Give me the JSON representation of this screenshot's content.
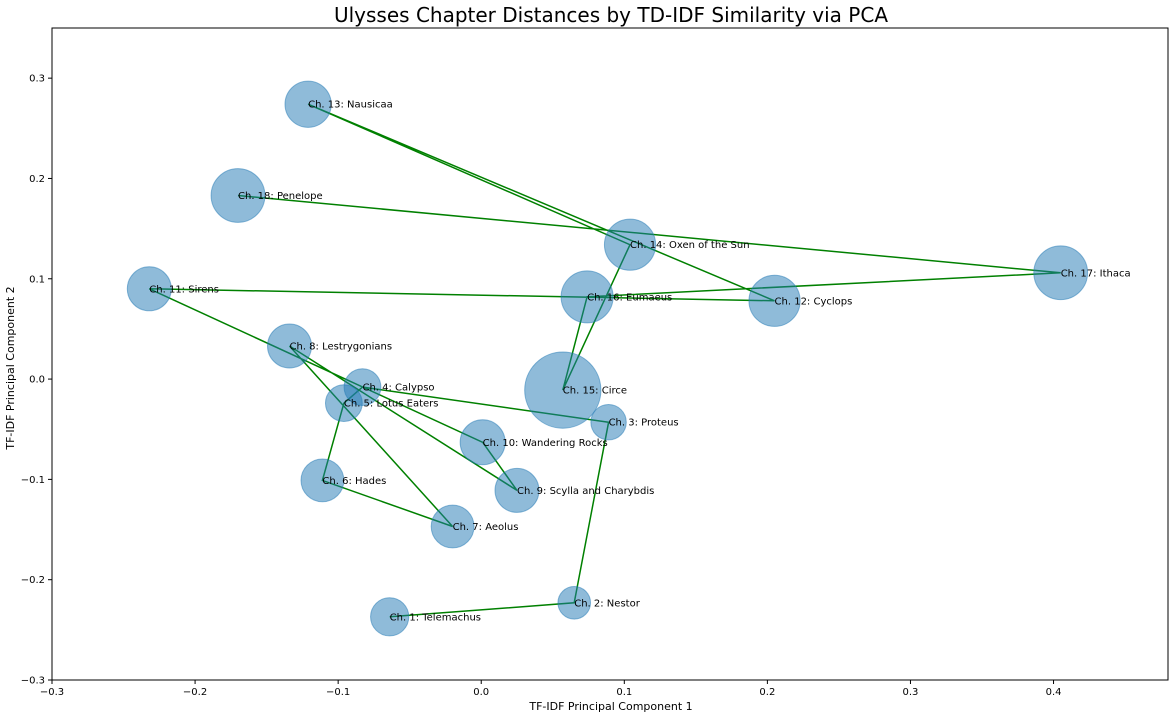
{
  "chart_data": {
    "type": "scatter",
    "title": "Ulysses Chapter Distances by TD-IDF Similarity via PCA",
    "xlabel": "TF-IDF Principal Component 1",
    "ylabel": "TF-IDF Principal Component 2",
    "xlim": [
      -0.3,
      0.48
    ],
    "ylim": [
      -0.3,
      0.35
    ],
    "xticks": [
      "−0.3",
      "−0.2",
      "−0.1",
      "0.0",
      "0.1",
      "0.2",
      "0.3",
      "0.4"
    ],
    "xtick_values": [
      -0.3,
      -0.2,
      -0.1,
      0.0,
      0.1,
      0.2,
      0.3,
      0.4
    ],
    "yticks": [
      "−0.3",
      "−0.2",
      "−0.1",
      "0.0",
      "0.1",
      "0.2",
      "0.3"
    ],
    "ytick_values": [
      -0.3,
      -0.2,
      -0.1,
      0.0,
      0.1,
      0.2,
      0.3
    ],
    "grid": false,
    "marker_color": "#1f77b4",
    "marker_alpha": 0.5,
    "line_color": "#008000",
    "points": [
      {
        "label": "Ch. 1: Telemachus",
        "x": -0.064,
        "y": -0.237,
        "size": 0.75
      },
      {
        "label": "Ch. 2: Nestor",
        "x": 0.065,
        "y": -0.223,
        "size": 0.55
      },
      {
        "label": "Ch. 3: Proteus",
        "x": 0.089,
        "y": -0.043,
        "size": 0.65
      },
      {
        "label": "Ch. 4: Calypso",
        "x": -0.083,
        "y": -0.008,
        "size": 0.7
      },
      {
        "label": "Ch. 5: Lotus Eaters",
        "x": -0.096,
        "y": -0.024,
        "size": 0.7
      },
      {
        "label": "Ch. 6: Hades",
        "x": -0.111,
        "y": -0.101,
        "size": 0.95
      },
      {
        "label": "Ch. 7: Aeolus",
        "x": -0.02,
        "y": -0.147,
        "size": 0.95
      },
      {
        "label": "Ch. 8: Lestrygonians",
        "x": -0.134,
        "y": 0.033,
        "size": 1.0
      },
      {
        "label": "Ch. 9: Scylla and Charybdis",
        "x": 0.025,
        "y": -0.111,
        "size": 1.0
      },
      {
        "label": "Ch. 10: Wandering Rocks",
        "x": 0.001,
        "y": -0.063,
        "size": 1.05
      },
      {
        "label": "Ch. 11: Sirens",
        "x": -0.232,
        "y": 0.09,
        "size": 1.0
      },
      {
        "label": "Ch. 12: Cyclops",
        "x": 0.205,
        "y": 0.078,
        "size": 1.35
      },
      {
        "label": "Ch. 13: Nausicaa",
        "x": -0.121,
        "y": 0.274,
        "size": 1.1
      },
      {
        "label": "Ch. 14: Oxen of the Sun",
        "x": 0.104,
        "y": 0.134,
        "size": 1.35
      },
      {
        "label": "Ch. 15: Circe",
        "x": 0.057,
        "y": -0.011,
        "size": 3.0
      },
      {
        "label": "Ch. 16: Eumaeus",
        "x": 0.074,
        "y": 0.082,
        "size": 1.4
      },
      {
        "label": "Ch. 17: Ithaca",
        "x": 0.405,
        "y": 0.106,
        "size": 1.5
      },
      {
        "label": "Ch. 18: Penelope",
        "x": -0.17,
        "y": 0.183,
        "size": 1.5
      }
    ],
    "connection_order": [
      1,
      2,
      3,
      4,
      5,
      6,
      7,
      8,
      9,
      10,
      11,
      12,
      13,
      14,
      15,
      16,
      17,
      18
    ]
  }
}
